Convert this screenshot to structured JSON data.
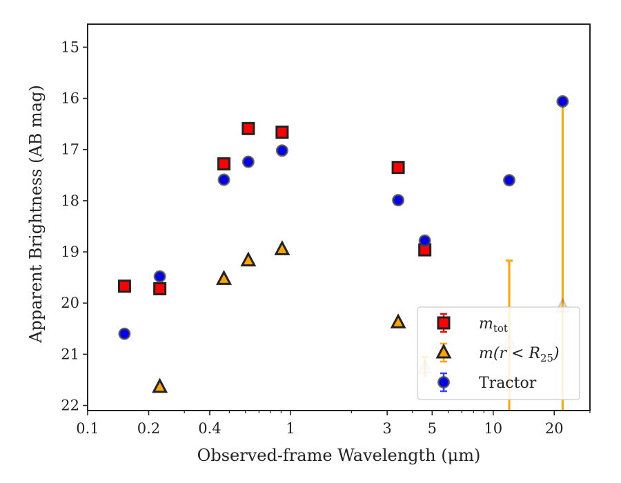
{
  "chart_data": {
    "type": "scatter",
    "xlabel": "Observed-frame Wavelength (μm)",
    "ylabel": "Apparent Brightness (AB mag)",
    "xscale": "log",
    "xlim": [
      0.1,
      30
    ],
    "ylim": [
      22.1,
      14.55
    ],
    "y_inverted": true,
    "x_ticks": [
      0.1,
      0.2,
      0.4,
      1,
      3,
      5,
      10,
      20
    ],
    "x_tick_labels": [
      "0.1",
      "0.2",
      "0.4",
      "1",
      "3",
      "5",
      "10",
      "20"
    ],
    "y_ticks": [
      15,
      16,
      17,
      18,
      19,
      20,
      21,
      22
    ],
    "y_tick_labels": [
      "15",
      "16",
      "17",
      "18",
      "19",
      "20",
      "21",
      "22"
    ],
    "legend_position": "lower-right",
    "series": [
      {
        "name": "m_tot",
        "label_main": "m",
        "label_sub": "tot",
        "marker": "square",
        "color": "#ff0000",
        "edge_color": "#222222",
        "points": [
          {
            "x": 0.152,
            "y": 19.67
          },
          {
            "x": 0.227,
            "y": 19.72
          },
          {
            "x": 0.47,
            "y": 17.28
          },
          {
            "x": 0.62,
            "y": 16.59
          },
          {
            "x": 0.91,
            "y": 16.66
          },
          {
            "x": 3.4,
            "y": 17.35
          },
          {
            "x": 4.6,
            "y": 18.96
          }
        ]
      },
      {
        "name": "m(r < R25)",
        "label_main": "m(r < R",
        "label_sub": "25",
        "label_end": ")",
        "marker": "triangle",
        "color": "#ffa500",
        "edge_color": "#222222",
        "points": [
          {
            "x": 0.227,
            "y": 21.64
          },
          {
            "x": 0.47,
            "y": 19.53
          },
          {
            "x": 0.62,
            "y": 19.17
          },
          {
            "x": 0.91,
            "y": 18.95
          },
          {
            "x": 3.4,
            "y": 20.38
          },
          {
            "x": 4.6,
            "y": 21.27,
            "faded": true,
            "err_low": 21.05,
            "err_high": 21.45
          },
          {
            "x": 12.0,
            "y": 20.78,
            "faded": true,
            "err_low": 19.17,
            "err_high": 22.1
          },
          {
            "x": 22.0,
            "y": 20.07,
            "faded": true,
            "err_low": 16.05,
            "err_high": 22.1
          }
        ]
      },
      {
        "name": "Tractor",
        "label_main": "Tractor",
        "marker": "circle",
        "color": "#0000ee",
        "edge_color": "#444444",
        "points": [
          {
            "x": 0.152,
            "y": 20.6
          },
          {
            "x": 0.227,
            "y": 19.48
          },
          {
            "x": 0.47,
            "y": 17.59
          },
          {
            "x": 0.62,
            "y": 17.24
          },
          {
            "x": 0.91,
            "y": 17.02
          },
          {
            "x": 3.4,
            "y": 17.99
          },
          {
            "x": 4.6,
            "y": 18.78
          },
          {
            "x": 12.0,
            "y": 17.6
          },
          {
            "x": 22.0,
            "y": 16.06
          }
        ]
      }
    ]
  }
}
